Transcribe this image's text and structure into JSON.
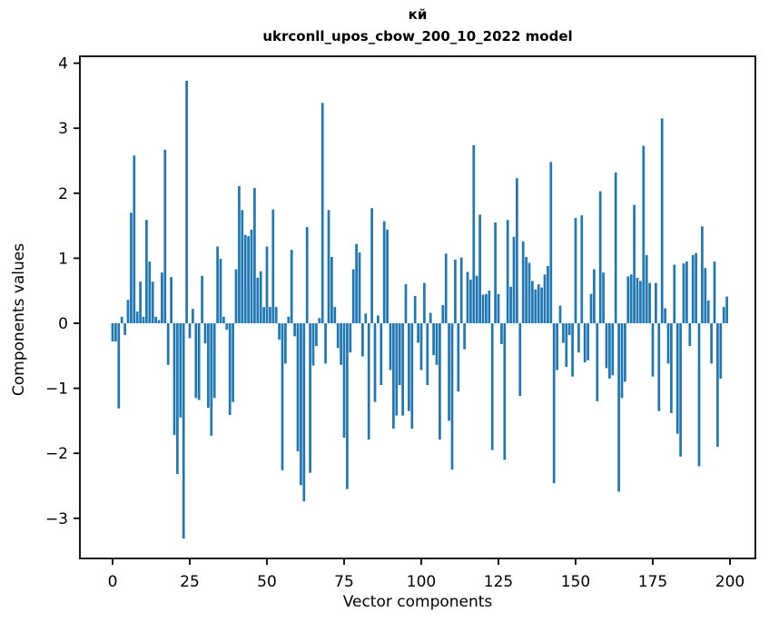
{
  "page": {
    "background": "#ffffff",
    "text_color": "#000000"
  },
  "chart_data": {
    "type": "bar",
    "title_line1": "кй",
    "title_line2": "ukrconll_upos_cbow_200_10_2022 model",
    "xlabel": "Vector components",
    "ylabel": "Components values",
    "bar_color": "#1f77b4",
    "axis_color": "#000000",
    "grid": false,
    "legend": "none",
    "n_components": 200,
    "xlim": [
      -10.6,
      208.2
    ],
    "ylim": [
      -3.62,
      4.11
    ],
    "xticks": [
      0,
      25,
      50,
      75,
      100,
      125,
      150,
      175,
      200
    ],
    "xticklabels": [
      "0",
      "25",
      "50",
      "75",
      "100",
      "125",
      "150",
      "175",
      "200"
    ],
    "yticks": [
      4,
      3,
      2,
      1,
      0,
      -1,
      -2,
      -3
    ],
    "yticklabels": [
      "4",
      "3",
      "2",
      "1",
      "0",
      "−1",
      "−2",
      "−3"
    ],
    "values": [
      -0.28,
      -0.28,
      -1.31,
      0.1,
      -0.18,
      0.36,
      1.7,
      2.58,
      0.18,
      0.64,
      0.1,
      1.59,
      0.95,
      0.64,
      0.1,
      0.05,
      0.78,
      2.67,
      -0.64,
      0.71,
      -1.72,
      -2.32,
      -1.45,
      -3.31,
      3.73,
      -0.23,
      0.22,
      -1.15,
      -1.18,
      0.73,
      -0.31,
      -1.3,
      -1.73,
      -1.15,
      1.18,
      0.99,
      0.1,
      -0.1,
      -1.41,
      -1.21,
      0.83,
      2.11,
      1.74,
      1.36,
      1.34,
      1.44,
      2.08,
      0.7,
      0.8,
      0.25,
      1.18,
      0.25,
      1.75,
      0.25,
      -0.25,
      -2.26,
      -0.62,
      0.1,
      1.13,
      -0.2,
      -1.97,
      -2.49,
      -2.74,
      1.48,
      -2.3,
      -0.65,
      -0.35,
      0.08,
      3.39,
      -0.62,
      1.74,
      1.02,
      0.25,
      -0.38,
      -0.64,
      -1.76,
      -2.55,
      -0.45,
      0.83,
      1.22,
      1.09,
      -0.51,
      0.15,
      -1.79,
      1.77,
      -1.21,
      0.12,
      -0.95,
      1.57,
      1.44,
      -0.72,
      -1.62,
      -1.42,
      -0.95,
      -1.42,
      0.6,
      -1.35,
      -1.62,
      0.42,
      -0.3,
      -0.72,
      0.62,
      -0.95,
      0.16,
      -0.49,
      -0.64,
      -1.79,
      0.28,
      1.07,
      -1.5,
      -2.25,
      0.98,
      -1.05,
      1.01,
      -0.4,
      0.79,
      0.67,
      2.74,
      0.73,
      1.67,
      0.44,
      0.45,
      0.5,
      -1.95,
      1.55,
      0.45,
      -0.32,
      -2.1,
      1.59,
      0.56,
      1.33,
      2.23,
      -1.12,
      1.26,
      1.02,
      0.93,
      0.65,
      0.52,
      0.6,
      0.55,
      0.75,
      0.88,
      2.48,
      -2.46,
      -0.72,
      0.27,
      -0.3,
      -0.67,
      -0.18,
      -0.82,
      1.62,
      -0.45,
      1.66,
      -0.6,
      -0.57,
      0.45,
      0.83,
      -1.2,
      2.03,
      0.78,
      -0.69,
      -0.85,
      -0.8,
      2.32,
      -2.59,
      -1.15,
      -0.9,
      0.72,
      0.75,
      1.82,
      0.7,
      0.65,
      2.73,
      1.05,
      0.62,
      -0.82,
      0.62,
      -1.35,
      3.15,
      0.23,
      -0.62,
      -1.38,
      0.9,
      -1.7,
      -2.05,
      0.92,
      0.95,
      -0.35,
      1.05,
      1.08,
      -2.2,
      1.49,
      0.85,
      0.35,
      -0.62,
      0.95,
      -1.9,
      -0.85,
      0.25,
      0.41
    ]
  }
}
